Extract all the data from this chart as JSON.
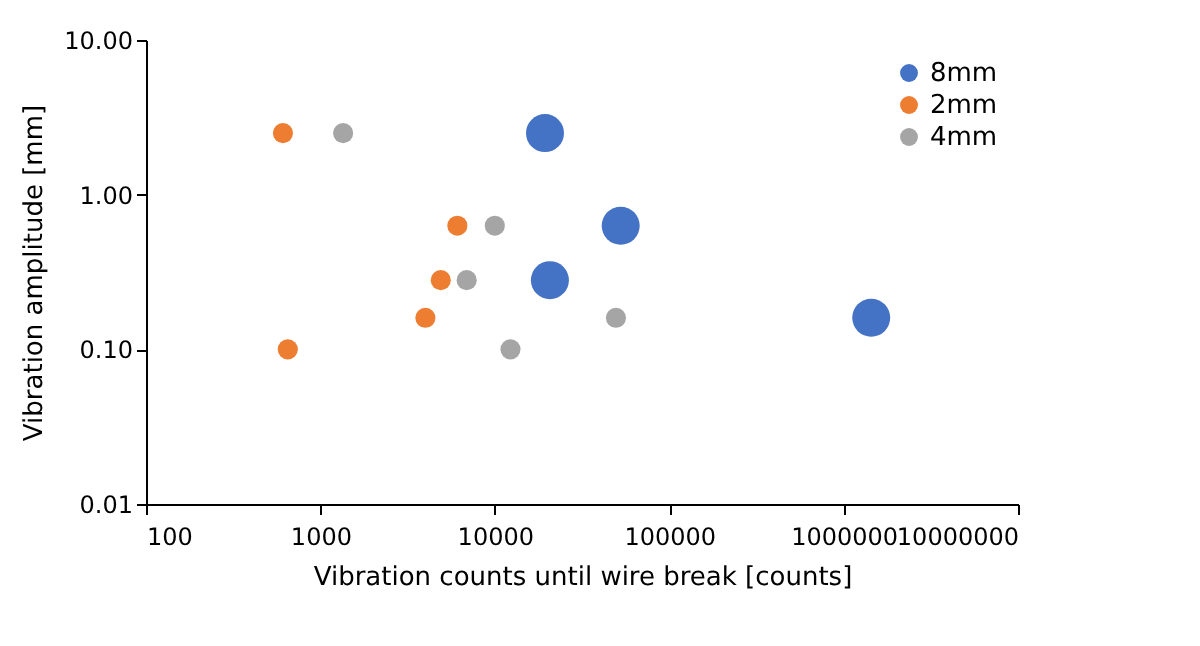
{
  "chart_data": {
    "type": "scatter",
    "xlabel": "Vibration counts until wire break [counts]",
    "ylabel": "Vibration amplitude [mm]",
    "log": "xy",
    "grid": false,
    "legend": "top right",
    "marker": "circle",
    "xlim": [
      100,
      10000000
    ],
    "xticks": [
      100,
      1000,
      10000,
      100000,
      1000000,
      10000000
    ],
    "ylim": [
      0.01,
      10
    ],
    "yticks": [
      {
        "value": 0.01,
        "label": "0.01"
      },
      {
        "value": 0.1,
        "label": "0.10"
      },
      {
        "value": 1,
        "label": "1.00"
      },
      {
        "value": 10,
        "label": "10.00"
      }
    ],
    "series": [
      {
        "name": "8mm",
        "color": "#4472c4",
        "x": [
          19400,
          52700,
          20700,
          1440000
        ],
        "values": [
          2.5,
          0.63,
          0.28,
          0.16
        ]
      },
      {
        "name": "2mm",
        "color": "#ed7d31",
        "x": [
          610,
          650,
          6100,
          4900,
          4000
        ],
        "values": [
          2.5,
          0.1,
          0.63,
          0.28,
          0.16
        ]
      },
      {
        "name": "4mm",
        "color": "#a5a5a5",
        "x": [
          1350,
          10000,
          6900,
          12300,
          49500
        ],
        "values": [
          2.5,
          0.63,
          0.28,
          0.1,
          0.16
        ]
      }
    ]
  }
}
